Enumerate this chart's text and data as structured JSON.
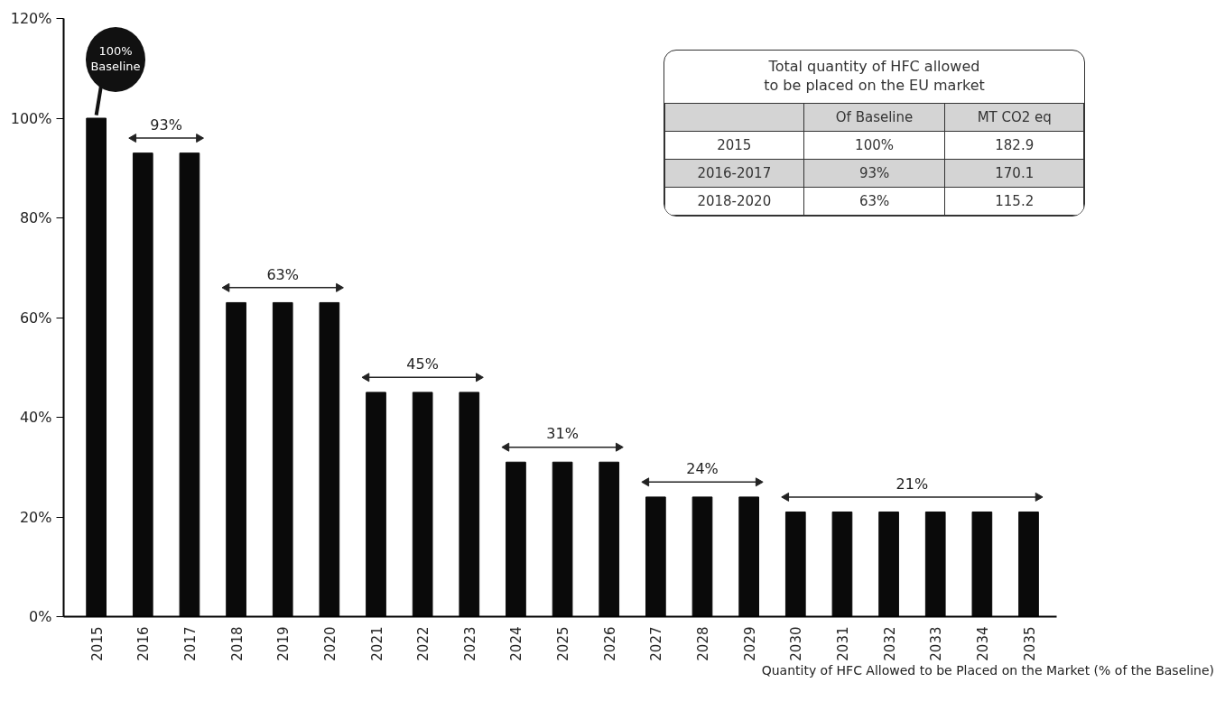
{
  "chart_data": {
    "type": "bar",
    "categories": [
      "2015",
      "2016",
      "2017",
      "2018",
      "2019",
      "2020",
      "2021",
      "2022",
      "2023",
      "2024",
      "2025",
      "2026",
      "2027",
      "2028",
      "2029",
      "2030",
      "2031",
      "2032",
      "2033",
      "2034",
      "2035"
    ],
    "values": [
      100,
      93,
      93,
      63,
      63,
      63,
      45,
      45,
      45,
      31,
      31,
      31,
      24,
      24,
      24,
      21,
      21,
      21,
      21,
      21,
      21
    ],
    "color": "#0a0a0a",
    "ylim": [
      0,
      120
    ],
    "yticks": [
      {
        "value": 0,
        "label": "0%"
      },
      {
        "value": 20,
        "label": "20%"
      },
      {
        "value": 40,
        "label": "40%"
      },
      {
        "value": 60,
        "label": "60%"
      },
      {
        "value": 80,
        "label": "80%"
      },
      {
        "value": 100,
        "label": "100%"
      },
      {
        "value": 120,
        "label": "120%"
      }
    ],
    "xlabel": "Quantity of HFC Allowed to be Placed on the Market (% of the Baseline)",
    "grid": false,
    "annotations": [
      {
        "text": "100%\nBaseline",
        "x": "2015",
        "y": 100
      },
      {
        "text": "93%",
        "x": "2016",
        "y": 93
      },
      {
        "text": "63%",
        "x": "2018",
        "y": 63
      },
      {
        "text": "45%",
        "x": "2021",
        "y": 45
      },
      {
        "text": "31%",
        "x": "2024",
        "y": 31
      },
      {
        "text": "24%",
        "x": "2027",
        "y": 24
      },
      {
        "text": "21%",
        "x": "2032",
        "y": 21
      },
      "Total quantity of HFC allowed\nto be placed on the EU market",
      "Of Baseline",
      "MT CO2 eq",
      "2015",
      "100%",
      "182.9",
      "2016-2017",
      "93%",
      "170.1",
      "2018-2020",
      "63%",
      "115.2"
    ]
  }
}
